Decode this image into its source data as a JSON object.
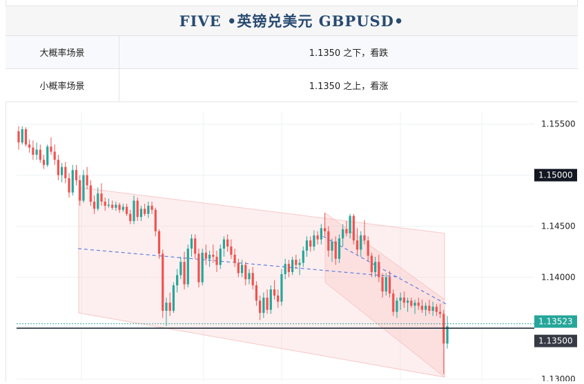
{
  "header": {
    "title": "FIVE •英镑兑美元 GBPUSD•"
  },
  "scenarios": [
    {
      "label": "大概率场景",
      "value": "1.1350 之下，看跌"
    },
    {
      "label": "小概率场景",
      "value": "1.1350 之上，看涨"
    }
  ],
  "chart_data": {
    "type": "candlestick",
    "symbol": "GBPUSD",
    "ylim": [
      1.1298,
      1.1562
    ],
    "y_ticks": [
      "1.15500",
      "1.15000",
      "1.14500",
      "1.14000",
      "1.13000"
    ],
    "price_labels": {
      "current": "1.13523",
      "level_top": "1.15000",
      "level_bottom": "1.13500"
    },
    "current_price": 1.13523,
    "support_level": 1.135,
    "colors": {
      "up": "#26a69a",
      "down": "#ef5350",
      "channel_fill": "#f8c7c7",
      "trend_dash": "#5b7fe0",
      "label_dark": "#131722",
      "label_gray": "#363a45"
    },
    "channels": [
      {
        "name": "wide",
        "start_price_top": 1.1488,
        "end_price_top": 1.1443,
        "start_price_bottom": 1.1365,
        "end_price_bottom": 1.1302
      },
      {
        "name": "steep",
        "start_price_top": 1.1463,
        "end_price_top": 1.1378,
        "start_price_bottom": 1.1395,
        "end_price_bottom": 1.1302
      }
    ],
    "trend_lines": [
      {
        "from": 1.1428,
        "to": 1.14
      },
      {
        "from": 1.144,
        "to": 1.1373
      }
    ],
    "candles": [
      [
        1.1543,
        1.1548,
        1.1525,
        1.1532
      ],
      [
        1.1532,
        1.1548,
        1.153,
        1.1545
      ],
      [
        1.1545,
        1.1547,
        1.1528,
        1.153
      ],
      [
        1.153,
        1.1535,
        1.1522,
        1.1527
      ],
      [
        1.1527,
        1.1534,
        1.1515,
        1.152
      ],
      [
        1.152,
        1.1532,
        1.1515,
        1.1525
      ],
      [
        1.1525,
        1.153,
        1.1512,
        1.1515
      ],
      [
        1.1515,
        1.152,
        1.1506,
        1.151
      ],
      [
        1.151,
        1.153,
        1.1508,
        1.1528
      ],
      [
        1.1528,
        1.1537,
        1.152,
        1.1523
      ],
      [
        1.1523,
        1.153,
        1.151,
        1.1515
      ],
      [
        1.1515,
        1.152,
        1.1495,
        1.15
      ],
      [
        1.15,
        1.1512,
        1.1493,
        1.1508
      ],
      [
        1.1508,
        1.1513,
        1.1492,
        1.1497
      ],
      [
        1.1497,
        1.1502,
        1.1478,
        1.1483
      ],
      [
        1.1483,
        1.151,
        1.148,
        1.1505
      ],
      [
        1.1505,
        1.151,
        1.149,
        1.1495
      ],
      [
        1.1495,
        1.15,
        1.147,
        1.1475
      ],
      [
        1.1475,
        1.1505,
        1.1473,
        1.15
      ],
      [
        1.15,
        1.1508,
        1.1486,
        1.149
      ],
      [
        1.149,
        1.1495,
        1.147,
        1.1474
      ],
      [
        1.1474,
        1.148,
        1.1462,
        1.1467
      ],
      [
        1.1467,
        1.1488,
        1.1465,
        1.1482
      ],
      [
        1.1482,
        1.1492,
        1.147,
        1.1474
      ],
      [
        1.1474,
        1.1478,
        1.1465,
        1.147
      ],
      [
        1.147,
        1.1477,
        1.1468,
        1.1471
      ],
      [
        1.1471,
        1.1475,
        1.1466,
        1.1468
      ],
      [
        1.1468,
        1.1474,
        1.1465,
        1.1471
      ],
      [
        1.1471,
        1.1473,
        1.1463,
        1.1466
      ],
      [
        1.1466,
        1.1472,
        1.1464,
        1.1469
      ],
      [
        1.1469,
        1.1472,
        1.146,
        1.1462
      ],
      [
        1.1462,
        1.1466,
        1.1452,
        1.1455
      ],
      [
        1.1455,
        1.148,
        1.1452,
        1.1475
      ],
      [
        1.1475,
        1.1478,
        1.1455,
        1.1459
      ],
      [
        1.1459,
        1.147,
        1.1455,
        1.1467
      ],
      [
        1.1467,
        1.1472,
        1.146,
        1.1462
      ],
      [
        1.1462,
        1.1474,
        1.1458,
        1.147
      ],
      [
        1.147,
        1.1474,
        1.1462,
        1.1466
      ],
      [
        1.1466,
        1.1468,
        1.144,
        1.1445
      ],
      [
        1.1445,
        1.1447,
        1.1418,
        1.1423
      ],
      [
        1.1423,
        1.1427,
        1.136,
        1.1367
      ],
      [
        1.1367,
        1.138,
        1.1352,
        1.1375
      ],
      [
        1.1375,
        1.1385,
        1.1362,
        1.1367
      ],
      [
        1.1367,
        1.1395,
        1.1365,
        1.1392
      ],
      [
        1.1392,
        1.1408,
        1.1385,
        1.1402
      ],
      [
        1.1402,
        1.142,
        1.1398,
        1.1415
      ],
      [
        1.1415,
        1.1425,
        1.1388,
        1.1393
      ],
      [
        1.1393,
        1.1432,
        1.139,
        1.1428
      ],
      [
        1.1428,
        1.1442,
        1.142,
        1.1438
      ],
      [
        1.1438,
        1.1442,
        1.1418,
        1.1423
      ],
      [
        1.1423,
        1.1428,
        1.139,
        1.1395
      ],
      [
        1.1395,
        1.1428,
        1.1392,
        1.1424
      ],
      [
        1.1424,
        1.1432,
        1.1412,
        1.1418
      ],
      [
        1.1418,
        1.1426,
        1.141,
        1.1422
      ],
      [
        1.1422,
        1.1432,
        1.1414,
        1.142
      ],
      [
        1.142,
        1.1426,
        1.1405,
        1.1412
      ],
      [
        1.1412,
        1.1432,
        1.1408,
        1.1428
      ],
      [
        1.1428,
        1.144,
        1.142,
        1.1437
      ],
      [
        1.1437,
        1.1442,
        1.1425,
        1.143
      ],
      [
        1.143,
        1.1437,
        1.1418,
        1.1422
      ],
      [
        1.1422,
        1.1428,
        1.141,
        1.1414
      ],
      [
        1.1414,
        1.1418,
        1.14,
        1.1404
      ],
      [
        1.1404,
        1.1417,
        1.14,
        1.1412
      ],
      [
        1.1412,
        1.1415,
        1.1392,
        1.1398
      ],
      [
        1.1398,
        1.1408,
        1.1393,
        1.1404
      ],
      [
        1.1404,
        1.141,
        1.1388,
        1.1392
      ],
      [
        1.1392,
        1.1396,
        1.1372,
        1.1377
      ],
      [
        1.1377,
        1.1382,
        1.1358,
        1.1365
      ],
      [
        1.1365,
        1.1385,
        1.136,
        1.138
      ],
      [
        1.138,
        1.1388,
        1.1364,
        1.1368
      ],
      [
        1.1368,
        1.1392,
        1.1364,
        1.1388
      ],
      [
        1.1388,
        1.1397,
        1.1378,
        1.1382
      ],
      [
        1.1382,
        1.1388,
        1.137,
        1.1376
      ],
      [
        1.1376,
        1.1408,
        1.1372,
        1.1403
      ],
      [
        1.1403,
        1.1418,
        1.1398,
        1.1413
      ],
      [
        1.1413,
        1.1417,
        1.14,
        1.1405
      ],
      [
        1.1405,
        1.142,
        1.1402,
        1.1417
      ],
      [
        1.1417,
        1.1422,
        1.1408,
        1.1412
      ],
      [
        1.1412,
        1.1418,
        1.1402,
        1.1414
      ],
      [
        1.1414,
        1.143,
        1.141,
        1.1426
      ],
      [
        1.1426,
        1.144,
        1.142,
        1.1436
      ],
      [
        1.1436,
        1.144,
        1.1425,
        1.143
      ],
      [
        1.143,
        1.1446,
        1.1426,
        1.1441
      ],
      [
        1.1441,
        1.1445,
        1.1432,
        1.1437
      ],
      [
        1.1437,
        1.1452,
        1.1432,
        1.1448
      ],
      [
        1.1448,
        1.1463,
        1.144,
        1.1445
      ],
      [
        1.1445,
        1.145,
        1.142,
        1.1426
      ],
      [
        1.1426,
        1.1438,
        1.1415,
        1.1435
      ],
      [
        1.1435,
        1.144,
        1.1412,
        1.1418
      ],
      [
        1.1418,
        1.1442,
        1.1414,
        1.1438
      ],
      [
        1.1438,
        1.1452,
        1.143,
        1.1447
      ],
      [
        1.1447,
        1.1455,
        1.144,
        1.1443
      ],
      [
        1.1443,
        1.1462,
        1.1438,
        1.146
      ],
      [
        1.146,
        1.1462,
        1.1432,
        1.1436
      ],
      [
        1.1436,
        1.1448,
        1.1422,
        1.1427
      ],
      [
        1.1427,
        1.1445,
        1.142,
        1.1441
      ],
      [
        1.1441,
        1.1456,
        1.1432,
        1.1436
      ],
      [
        1.1436,
        1.144,
        1.1416,
        1.1421
      ],
      [
        1.1421,
        1.1424,
        1.14,
        1.1405
      ],
      [
        1.1405,
        1.142,
        1.14,
        1.1415
      ],
      [
        1.1415,
        1.1422,
        1.1395,
        1.14
      ],
      [
        1.14,
        1.1404,
        1.138,
        1.1386
      ],
      [
        1.1386,
        1.1404,
        1.1382,
        1.14
      ],
      [
        1.14,
        1.1406,
        1.138,
        1.1384
      ],
      [
        1.1384,
        1.1388,
        1.1362,
        1.1366
      ],
      [
        1.1366,
        1.138,
        1.136,
        1.1377
      ],
      [
        1.1377,
        1.1385,
        1.1368,
        1.138
      ],
      [
        1.138,
        1.1386,
        1.137,
        1.1375
      ],
      [
        1.1375,
        1.138,
        1.1366,
        1.1377
      ],
      [
        1.1377,
        1.138,
        1.137,
        1.1372
      ],
      [
        1.1372,
        1.1378,
        1.1364,
        1.1375
      ],
      [
        1.1375,
        1.138,
        1.1368,
        1.1372
      ],
      [
        1.1372,
        1.1378,
        1.1365,
        1.1368
      ],
      [
        1.1368,
        1.1375,
        1.1362,
        1.1372
      ],
      [
        1.1372,
        1.1378,
        1.1364,
        1.1367
      ],
      [
        1.1367,
        1.1376,
        1.1362,
        1.1371
      ],
      [
        1.1371,
        1.1374,
        1.1362,
        1.1366
      ],
      [
        1.1366,
        1.1374,
        1.136,
        1.1364
      ],
      [
        1.1364,
        1.1368,
        1.1305,
        1.1335
      ],
      [
        1.1335,
        1.1362,
        1.133,
        1.1352
      ]
    ]
  }
}
